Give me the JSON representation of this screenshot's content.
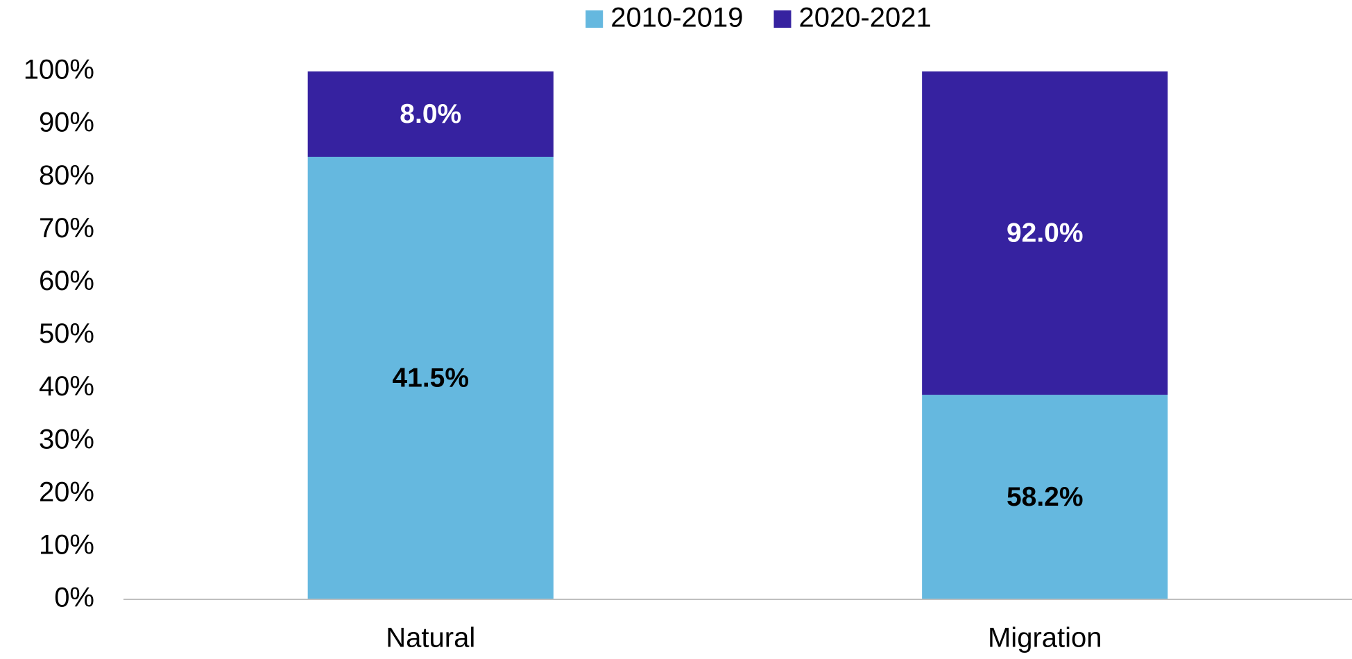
{
  "chart_data": {
    "type": "bar",
    "stacking": "percent",
    "categories": [
      "Natural",
      "Migration"
    ],
    "series": [
      {
        "name": "2010-2019",
        "color": "#65b8df",
        "label_color": "#000000",
        "values": [
          41.5,
          58.2
        ],
        "value_labels": [
          "41.5%",
          "58.2%"
        ]
      },
      {
        "name": "2020-2021",
        "color": "#3622a0",
        "label_color": "#ffffff",
        "values": [
          8.0,
          92.0
        ],
        "value_labels": [
          "8.0%",
          "92.0%"
        ]
      }
    ],
    "ylim": [
      0,
      100
    ],
    "yticks": [
      {
        "value": 0,
        "label": "0%"
      },
      {
        "value": 10,
        "label": "10%"
      },
      {
        "value": 20,
        "label": "20%"
      },
      {
        "value": 30,
        "label": "30%"
      },
      {
        "value": 40,
        "label": "40%"
      },
      {
        "value": 50,
        "label": "50%"
      },
      {
        "value": 60,
        "label": "60%"
      },
      {
        "value": 70,
        "label": "70%"
      },
      {
        "value": 80,
        "label": "80%"
      },
      {
        "value": 90,
        "label": "90%"
      },
      {
        "value": 100,
        "label": "100%"
      }
    ],
    "grid": false,
    "legend": "top"
  }
}
